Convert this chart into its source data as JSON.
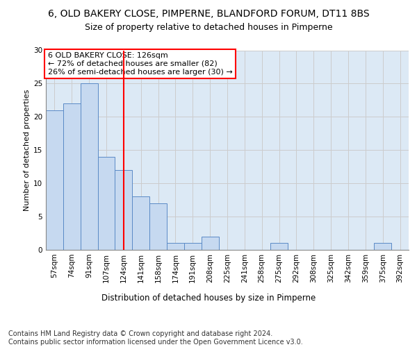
{
  "title": "6, OLD BAKERY CLOSE, PIMPERNE, BLANDFORD FORUM, DT11 8BS",
  "subtitle": "Size of property relative to detached houses in Pimperne",
  "xlabel_bottom": "Distribution of detached houses by size in Pimperne",
  "ylabel": "Number of detached properties",
  "categories": [
    "57sqm",
    "74sqm",
    "91sqm",
    "107sqm",
    "124sqm",
    "141sqm",
    "158sqm",
    "174sqm",
    "191sqm",
    "208sqm",
    "225sqm",
    "241sqm",
    "258sqm",
    "275sqm",
    "292sqm",
    "308sqm",
    "325sqm",
    "342sqm",
    "359sqm",
    "375sqm",
    "392sqm"
  ],
  "values": [
    21,
    22,
    25,
    14,
    12,
    8,
    7,
    1,
    1,
    2,
    0,
    0,
    0,
    1,
    0,
    0,
    0,
    0,
    0,
    1,
    0
  ],
  "bar_color": "#c6d9f0",
  "bar_edge_color": "#5a8ac6",
  "vline_x": 4.0,
  "vline_color": "red",
  "annotation_text": "6 OLD BAKERY CLOSE: 126sqm\n← 72% of detached houses are smaller (82)\n26% of semi-detached houses are larger (30) →",
  "annotation_box_color": "white",
  "annotation_box_edge_color": "red",
  "ylim": [
    0,
    30
  ],
  "yticks": [
    0,
    5,
    10,
    15,
    20,
    25,
    30
  ],
  "grid_color": "#cccccc",
  "background_color": "#dce9f5",
  "footer_text": "Contains HM Land Registry data © Crown copyright and database right 2024.\nContains public sector information licensed under the Open Government Licence v3.0.",
  "title_fontsize": 10,
  "subtitle_fontsize": 9,
  "footer_fontsize": 7,
  "annot_fontsize": 8,
  "ylabel_fontsize": 8,
  "tick_fontsize": 7.5,
  "xlabel_fontsize": 8.5
}
